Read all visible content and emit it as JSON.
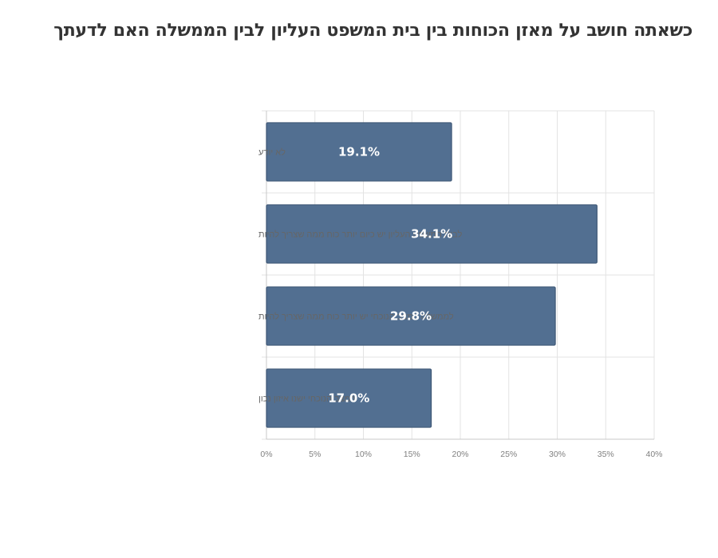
{
  "chart_data": {
    "type": "bar",
    "orientation": "horizontal",
    "title": "כשאתה חושב על מאזן הכוחות בין בית המשפט העליון לבין הממשלה  האם לדעתך",
    "categories": [
      "לא יודע",
      "לבית המשפט העליון יש כיום יותר כוח ממה שצריך להיות",
      "לממשלה במצב הנוכחי יש יותר כוח ממה שצריך להיות",
      "במצב הנוכחי ישנו איזון נכון"
    ],
    "values": [
      19.1,
      34.1,
      29.8,
      17.0
    ],
    "data_labels": [
      "19.1%",
      "34.1%",
      "29.8%",
      "17.0%"
    ],
    "xlim": [
      0,
      40
    ],
    "x_ticks": [
      0,
      5,
      10,
      15,
      20,
      25,
      30,
      35,
      40
    ],
    "x_tick_labels": [
      "0%",
      "5%",
      "10%",
      "15%",
      "20%",
      "25%",
      "30%",
      "35%",
      "40%"
    ],
    "xlabel": "",
    "ylabel": "",
    "grid": true,
    "legend": "none",
    "colors": {
      "bar": "#526f91",
      "bar_edge": "#3f5876",
      "grid": "#e3e3e3",
      "axis": "#c8c8c8",
      "title": "#333333"
    }
  }
}
